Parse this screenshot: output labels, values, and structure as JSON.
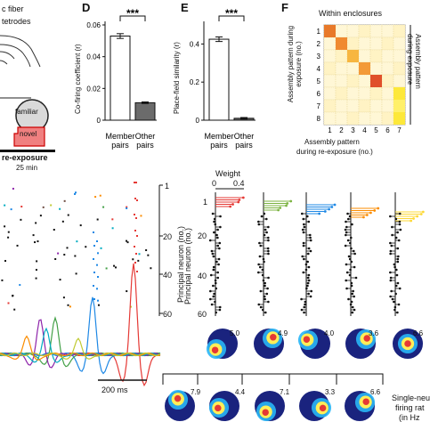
{
  "panel_c": {
    "fiber_label": "c fiber",
    "tetrodes_label": "tetrodes",
    "familiar_label": "familiar",
    "novel_label": "novel",
    "reexposure_label": "re-exposure",
    "duration_label": "25 min"
  },
  "panel_d": {
    "letter": "D",
    "ylabel": "Co-firing coefficient (r)",
    "significance": "***"
  },
  "panel_e": {
    "letter": "E",
    "ylabel": "Place-field similarity (r)",
    "significance": "***"
  },
  "panel_f": {
    "letter": "F",
    "title": "Within enclosures",
    "ylabel": "Assembly pattern during exposure (no.)",
    "ylabel_right_1": "Assembly pattern",
    "ylabel_right_2": "during exposure",
    "xlabel_1": "Assembly pattern",
    "xlabel_2": "during re-exposure (no.)"
  },
  "raster": {
    "ylabel": "Principal neuron (no.)",
    "scale_label": "200 ms",
    "ticks": [
      "1",
      "20",
      "40",
      "60"
    ]
  },
  "weights": {
    "title": "Weight",
    "ticks": [
      "0",
      "0.4"
    ],
    "ylabel": "Principal neuron (no.)",
    "yticks": [
      "1",
      "20",
      "40",
      "60"
    ]
  },
  "maps": {
    "row1_values": [
      "5.0",
      "4.9",
      "4.0",
      "3.6",
      "6.6"
    ],
    "row2_values": [
      "7.9",
      "4.4",
      "7.1",
      "3.3",
      "6.6"
    ],
    "legend_1": "Single-neu",
    "legend_2": "firing rat",
    "legend_3": "(in Hz"
  },
  "chart_data": [
    {
      "type": "bar",
      "title": "",
      "categories": [
        "Member pairs",
        "Other pairs"
      ],
      "values": [
        0.053,
        0.011
      ],
      "errors": [
        0.0015,
        0.0005
      ],
      "xlabel": "",
      "ylabel": "Co-firing coefficient (r)",
      "ylim": [
        0,
        0.06
      ],
      "yticks": [
        "0",
        "0.02",
        "0.04",
        "0.06"
      ],
      "colors": [
        "#ffffff",
        "#6b6b6b"
      ]
    },
    {
      "type": "bar",
      "title": "",
      "categories": [
        "Member pairs",
        "Other pairs"
      ],
      "values": [
        0.425,
        0.01
      ],
      "errors": [
        0.012,
        0.004
      ],
      "xlabel": "",
      "ylabel": "Place-field similarity (r)",
      "ylim": [
        0,
        0.5
      ],
      "yticks": [
        "0",
        "0.2",
        "0.4"
      ],
      "colors": [
        "#ffffff",
        "#6b6b6b"
      ]
    },
    {
      "type": "heatmap",
      "title": "Within enclosures",
      "x": [
        "1",
        "2",
        "3",
        "4",
        "5",
        "6",
        "7"
      ],
      "y": [
        "1",
        "2",
        "3",
        "4",
        "5",
        "6",
        "7",
        "8"
      ],
      "xlabel": "Assembly pattern during re-exposure (no.)",
      "ylabel": "Assembly pattern during exposure (no.)",
      "diagonal_colors": [
        "#e8792a",
        "#f08a30",
        "#f7b640",
        "#f39a38",
        "#e0502a",
        "#fde83a",
        "#fff06a",
        "#fde83a"
      ]
    }
  ]
}
